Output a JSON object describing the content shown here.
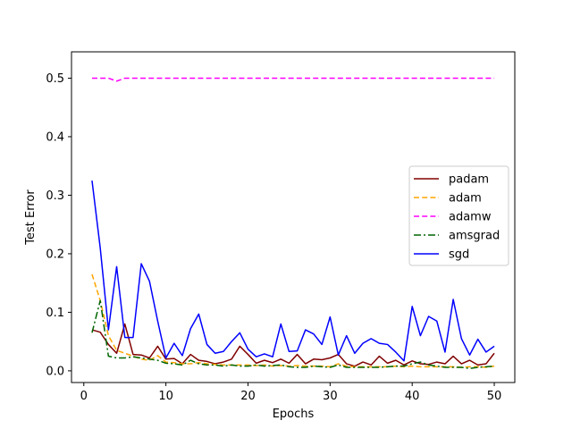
{
  "chart_data": {
    "type": "line",
    "xlabel": "Epochs",
    "ylabel": "Test Error",
    "xlim": [
      -1.5,
      52.5
    ],
    "ylim": [
      -0.02,
      0.545
    ],
    "xticks": [
      0,
      10,
      20,
      30,
      40,
      50
    ],
    "yticks": [
      0.0,
      0.1,
      0.2,
      0.3,
      0.4,
      0.5
    ],
    "grid": false,
    "legend_position": "center-right",
    "x": [
      1,
      2,
      3,
      4,
      5,
      6,
      7,
      8,
      9,
      10,
      11,
      12,
      13,
      14,
      15,
      16,
      17,
      18,
      19,
      20,
      21,
      22,
      23,
      24,
      25,
      26,
      27,
      28,
      29,
      30,
      31,
      32,
      33,
      34,
      35,
      36,
      37,
      38,
      39,
      40,
      41,
      42,
      43,
      44,
      45,
      46,
      47,
      48,
      49,
      50
    ],
    "series": [
      {
        "name": "padam",
        "color": "#800000",
        "dash": "solid",
        "values": [
          0.07,
          0.066,
          0.045,
          0.03,
          0.08,
          0.028,
          0.027,
          0.022,
          0.042,
          0.02,
          0.021,
          0.012,
          0.028,
          0.018,
          0.016,
          0.012,
          0.015,
          0.02,
          0.042,
          0.028,
          0.013,
          0.018,
          0.014,
          0.02,
          0.013,
          0.028,
          0.012,
          0.02,
          0.019,
          0.022,
          0.028,
          0.012,
          0.008,
          0.015,
          0.01,
          0.025,
          0.013,
          0.018,
          0.01,
          0.017,
          0.012,
          0.011,
          0.015,
          0.012,
          0.025,
          0.012,
          0.018,
          0.01,
          0.012,
          0.03
        ]
      },
      {
        "name": "adam",
        "color": "#ffa500",
        "dash": "dashed",
        "values": [
          0.165,
          0.12,
          0.06,
          0.035,
          0.03,
          0.025,
          0.02,
          0.018,
          0.026,
          0.015,
          0.014,
          0.012,
          0.012,
          0.014,
          0.012,
          0.011,
          0.01,
          0.01,
          0.01,
          0.01,
          0.009,
          0.01,
          0.008,
          0.009,
          0.008,
          0.009,
          0.008,
          0.008,
          0.008,
          0.007,
          0.012,
          0.008,
          0.007,
          0.007,
          0.007,
          0.007,
          0.007,
          0.008,
          0.007,
          0.008,
          0.007,
          0.007,
          0.007,
          0.007,
          0.007,
          0.006,
          0.007,
          0.007,
          0.006,
          0.008
        ]
      },
      {
        "name": "adamw",
        "color": "#ff00ff",
        "dash": "dashed",
        "values": [
          0.5,
          0.5,
          0.5,
          0.495,
          0.5,
          0.5,
          0.5,
          0.5,
          0.5,
          0.5,
          0.5,
          0.5,
          0.5,
          0.5,
          0.5,
          0.5,
          0.5,
          0.5,
          0.5,
          0.5,
          0.5,
          0.5,
          0.5,
          0.5,
          0.5,
          0.5,
          0.5,
          0.5,
          0.5,
          0.5,
          0.5,
          0.5,
          0.5,
          0.5,
          0.5,
          0.5,
          0.5,
          0.5,
          0.5,
          0.5,
          0.5,
          0.5,
          0.5,
          0.5,
          0.5,
          0.5,
          0.5,
          0.5,
          0.5,
          0.5
        ]
      },
      {
        "name": "amsgrad",
        "color": "#006400",
        "dash": "dashdot",
        "values": [
          0.065,
          0.12,
          0.025,
          0.022,
          0.022,
          0.024,
          0.022,
          0.02,
          0.018,
          0.013,
          0.012,
          0.01,
          0.018,
          0.012,
          0.01,
          0.01,
          0.008,
          0.01,
          0.008,
          0.008,
          0.01,
          0.008,
          0.009,
          0.01,
          0.007,
          0.006,
          0.006,
          0.008,
          0.007,
          0.006,
          0.01,
          0.006,
          0.006,
          0.006,
          0.006,
          0.006,
          0.007,
          0.008,
          0.008,
          0.012,
          0.015,
          0.01,
          0.008,
          0.006,
          0.006,
          0.006,
          0.004,
          0.006,
          0.007,
          0.008
        ]
      },
      {
        "name": "sgd",
        "color": "#0000ff",
        "dash": "solid",
        "values": [
          0.325,
          0.21,
          0.07,
          0.178,
          0.057,
          0.057,
          0.183,
          0.153,
          0.085,
          0.022,
          0.047,
          0.026,
          0.072,
          0.097,
          0.045,
          0.03,
          0.033,
          0.05,
          0.065,
          0.037,
          0.024,
          0.029,
          0.024,
          0.08,
          0.033,
          0.034,
          0.07,
          0.063,
          0.045,
          0.092,
          0.027,
          0.06,
          0.03,
          0.047,
          0.055,
          0.047,
          0.045,
          0.032,
          0.017,
          0.11,
          0.06,
          0.093,
          0.085,
          0.032,
          0.122,
          0.055,
          0.027,
          0.054,
          0.032,
          0.042
        ]
      }
    ]
  }
}
